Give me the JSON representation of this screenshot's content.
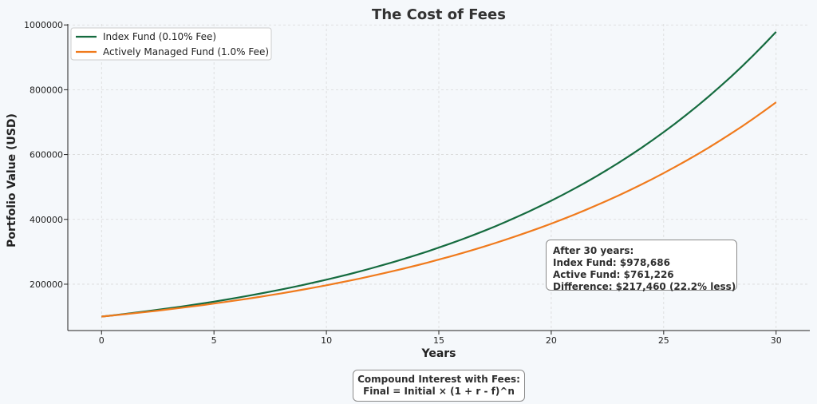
{
  "chart_data": {
    "type": "line",
    "title": "The Cost of Fees",
    "xlabel": "Years",
    "ylabel": "Portfolio Value (USD)",
    "xlim": [
      -1.5,
      31.5
    ],
    "ylim": [
      57000,
      1003000
    ],
    "x_ticks": [
      0,
      5,
      10,
      15,
      20,
      25,
      30
    ],
    "y_ticks": [
      200000,
      400000,
      600000,
      800000,
      1000000
    ],
    "grid": true,
    "legend_position": "top-left",
    "x": [
      0,
      5,
      10,
      15,
      20,
      25,
      30
    ],
    "series": [
      {
        "name": "Index Fund (0.10% Fee)",
        "color": "#156b3f",
        "values": [
          100000,
          146200,
          213800,
          312600,
          457000,
          668200,
          978686
        ]
      },
      {
        "name": "Actively Managed Fund (1.0% Fee)",
        "color": "#f07a1c",
        "values": [
          100000,
          140300,
          196700,
          275900,
          387000,
          542800,
          761226
        ]
      }
    ]
  },
  "annotation": {
    "lines": [
      "After 30 years:",
      "Index Fund: $978,686",
      "Active Fund: $761,226",
      "Difference: $217,460 (22.2% less)"
    ]
  },
  "formula": {
    "title": "Compound Interest with Fees:",
    "expression": "Final = Initial × (1 + r - f)^n"
  }
}
